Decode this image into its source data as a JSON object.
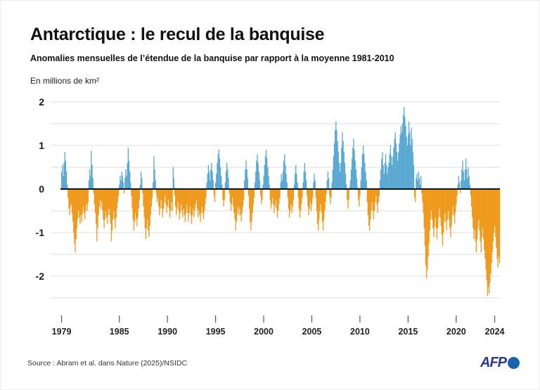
{
  "header": {
    "title": "Antarctique : le recul de la banquise",
    "subtitle": "Anomalies mensuelles de l’étendue de la banquise par rapport à la moyenne 1981-2010",
    "unit_label": "En millions de km²"
  },
  "footer": {
    "source": "Source : Abram et al. dans Nature (2025)/NSIDC",
    "logo": {
      "text": "AFP",
      "text_color": "#2b3a8f",
      "globe_color": "#1a62b0"
    }
  },
  "chart_data": {
    "type": "bar",
    "title": "Antarctique : le recul de la banquise",
    "ylabel": "En millions de km²",
    "x_start": {
      "year": 1979,
      "month": 1
    },
    "x_end": {
      "year": 2024,
      "month": 7
    },
    "x_tick_years": [
      1979,
      1985,
      1990,
      1995,
      2000,
      2005,
      2010,
      2015,
      2020,
      2024
    ],
    "y_ticks": [
      2,
      1,
      0,
      -1,
      -2
    ],
    "ylim": [
      -2.5,
      2
    ],
    "grid_step": 0.5,
    "legend": "none",
    "colors": {
      "positive": "#59A8D2",
      "negative": "#F0981A",
      "zero_line": "#111111",
      "grid": "#DCDCDC",
      "tick": "#555555",
      "label": "#1a1a1a"
    },
    "values": [
      0.4,
      0.55,
      0.3,
      0.6,
      0.85,
      0.65,
      0.4,
      0.1,
      -0.2,
      -0.45,
      -0.6,
      -0.4,
      -0.35,
      -0.55,
      -0.75,
      -1.0,
      -1.25,
      -1.45,
      -1.15,
      -0.9,
      -0.7,
      -0.5,
      -0.65,
      -0.8,
      -0.6,
      -0.75,
      -0.55,
      -0.4,
      -0.55,
      -0.7,
      -0.5,
      -0.35,
      -0.5,
      -0.3,
      0.2,
      0.45,
      0.3,
      0.88,
      0.55,
      0.25,
      -0.1,
      -0.35,
      -0.55,
      -0.8,
      -1.2,
      -0.9,
      -0.6,
      -0.4,
      -0.25,
      -0.45,
      -0.3,
      -0.5,
      -0.7,
      -0.9,
      -0.7,
      -0.5,
      -0.65,
      -0.8,
      -0.6,
      -0.45,
      -0.6,
      -0.8,
      -1.2,
      -0.95,
      -0.7,
      -0.5,
      -0.7,
      -0.9,
      -0.65,
      -0.45,
      -0.3,
      -0.15,
      0.1,
      0.3,
      0.2,
      0.4,
      0.3,
      0.15,
      -0.1,
      0.25,
      0.45,
      0.3,
      0.6,
      0.95,
      0.65,
      0.4,
      0.15,
      -0.15,
      -0.45,
      -0.7,
      -0.95,
      -0.75,
      -0.55,
      -0.7,
      -0.85,
      -0.65,
      -0.45,
      -0.25,
      0.1,
      0.4,
      0.25,
      -0.1,
      -0.4,
      -0.65,
      -0.9,
      -1.15,
      -0.9,
      -0.7,
      -0.95,
      -1.1,
      -0.85,
      -0.6,
      -0.4,
      -0.2,
      0.15,
      0.75,
      0.45,
      0.2,
      -0.1,
      -0.3,
      -0.2,
      -0.4,
      -0.6,
      -0.45,
      -0.25,
      -0.45,
      -0.65,
      -0.45,
      -0.3,
      -0.15,
      -0.35,
      -0.55,
      -0.4,
      -0.25,
      -0.45,
      -0.65,
      -0.5,
      -0.3,
      -0.5,
      0.5,
      0.25,
      -0.15,
      -0.4,
      -0.6,
      -0.45,
      -0.3,
      -0.5,
      -0.7,
      -0.55,
      -0.35,
      -0.5,
      -0.65,
      -0.45,
      -0.6,
      -0.75,
      -0.55,
      -0.35,
      -0.55,
      -0.75,
      -0.55,
      -0.4,
      -0.6,
      -0.8,
      -0.6,
      -0.45,
      -0.65,
      -0.5,
      -0.35,
      -0.25,
      -0.45,
      -0.65,
      -0.5,
      -0.6,
      -0.75,
      -0.55,
      -0.4,
      -0.55,
      -0.7,
      -0.5,
      -0.35,
      -0.2,
      0.15,
      0.35,
      0.55,
      0.4,
      0.2,
      0.45,
      0.6,
      0.4,
      0.2,
      -0.15,
      -0.3,
      0.15,
      0.35,
      0.6,
      0.8,
      0.9,
      0.7,
      0.5,
      0.3,
      0.1,
      -0.25,
      -0.4,
      -0.25,
      0.15,
      0.4,
      0.6,
      0.45,
      0.25,
      -0.1,
      -0.3,
      -0.5,
      -0.35,
      -0.2,
      -0.4,
      -0.55,
      -0.7,
      -0.95,
      -0.75,
      -0.55,
      -0.4,
      -0.6,
      -0.45,
      -0.6,
      -0.75,
      -0.55,
      -0.4,
      -0.25,
      0.2,
      0.45,
      0.65,
      0.45,
      0.25,
      -0.15,
      -0.45,
      -0.75,
      -0.95,
      -0.75,
      -0.55,
      -0.35,
      -0.2,
      0.15,
      0.4,
      0.65,
      0.8,
      0.6,
      0.4,
      0.2,
      -0.15,
      -0.35,
      -0.25,
      0.1,
      0.3,
      0.55,
      0.75,
      0.9,
      0.7,
      0.5,
      0.3,
      0.1,
      -0.25,
      -0.45,
      -0.35,
      -0.2,
      -0.35,
      -0.55,
      -0.4,
      -0.25,
      -0.45,
      -0.65,
      -0.5,
      -0.35,
      -0.2,
      0.15,
      0.35,
      0.2,
      0.4,
      0.65,
      0.8,
      0.55,
      0.35,
      0.15,
      -0.2,
      -0.45,
      -0.65,
      -0.5,
      -0.35,
      -0.55,
      -0.4,
      -0.25,
      0.1,
      0.35,
      0.55,
      0.35,
      0.15,
      -0.2,
      -0.45,
      -0.65,
      -0.5,
      -0.35,
      -0.2,
      0.15,
      0.4,
      0.6,
      0.4,
      0.2,
      -0.15,
      -0.4,
      -0.6,
      -0.45,
      -0.3,
      -0.5,
      -0.35,
      -0.2,
      0.15,
      0.35,
      0.2,
      -0.2,
      -0.5,
      -0.8,
      -0.95,
      -0.7,
      -0.5,
      -0.35,
      -0.55,
      -0.75,
      -0.95,
      -0.7,
      -0.5,
      -0.3,
      -0.1,
      0.2,
      0.4,
      0.25,
      -0.15,
      -0.35,
      -0.2,
      0.15,
      0.45,
      0.75,
      1.05,
      1.35,
      1.55,
      1.35,
      1.1,
      0.85,
      0.6,
      0.4,
      0.6,
      0.95,
      1.3,
      1.1,
      0.85,
      0.6,
      0.35,
      0.1,
      -0.25,
      -0.45,
      -0.25,
      0.05,
      0.2,
      0.45,
      0.7,
      0.95,
      1.15,
      0.9,
      0.65,
      0.45,
      0.25,
      0.05,
      -0.25,
      -0.4,
      -0.15,
      0.2,
      0.5,
      0.8,
      1.0,
      0.8,
      0.6,
      0.4,
      0.2,
      -0.3,
      -0.6,
      -0.85,
      -0.95,
      -0.7,
      -0.5,
      -0.3,
      -0.5,
      -0.7,
      -0.5,
      -0.3,
      -0.15,
      -0.35,
      -0.55,
      -0.3,
      -0.15,
      0.2,
      0.45,
      0.7,
      0.85,
      0.55,
      0.35,
      0.6,
      0.8,
      0.55,
      0.35,
      0.5,
      0.6,
      0.8,
      1.0,
      0.75,
      0.55,
      0.75,
      0.95,
      1.15,
      1.3,
      1.05,
      0.85,
      0.65,
      0.85,
      1.05,
      1.25,
      1.45,
      1.3,
      1.5,
      1.7,
      1.88,
      1.65,
      1.45,
      1.2,
      1.0,
      1.25,
      1.55,
      1.3,
      1.0,
      1.4,
      1.15,
      0.85,
      0.55,
      -0.2,
      -0.3,
      0.25,
      0.35,
      0.2,
      0.4,
      0.25,
      0.1,
      0.3,
      -0.1,
      -0.3,
      -0.55,
      -0.9,
      -1.3,
      -1.75,
      -2.05,
      -1.85,
      -1.55,
      -1.25,
      -0.95,
      -0.7,
      -0.5,
      -0.7,
      -0.9,
      -1.1,
      -0.85,
      -0.65,
      -0.9,
      -1.15,
      -0.9,
      -0.65,
      -0.45,
      -0.65,
      -0.85,
      -1.05,
      -1.3,
      -1.0,
      -0.75,
      -0.55,
      -0.75,
      -0.95,
      -0.7,
      -0.5,
      -0.7,
      -0.9,
      -1.1,
      -0.85,
      -0.6,
      -0.4,
      -0.6,
      -0.8,
      -0.55,
      -0.35,
      -0.15,
      0.1,
      0.3,
      0.15,
      -0.1,
      0.2,
      0.45,
      0.65,
      0.4,
      0.2,
      0.45,
      0.7,
      0.45,
      0.25,
      0.5,
      0.3,
      0.1,
      -0.15,
      -0.4,
      -0.65,
      -0.9,
      -1.15,
      -0.95,
      -1.2,
      -1.45,
      -1.15,
      -0.9,
      -0.7,
      -0.95,
      -1.2,
      -1.45,
      -1.1,
      -0.9,
      -1.15,
      -1.4,
      -1.6,
      -1.85,
      -2.1,
      -2.45,
      -2.25,
      -2.4,
      -2.15,
      -1.95,
      -1.7,
      -1.45,
      -1.2,
      -1.0,
      -0.85,
      -1.1,
      -1.35,
      -1.6,
      -1.8,
      -1.55,
      -1.7
    ]
  }
}
